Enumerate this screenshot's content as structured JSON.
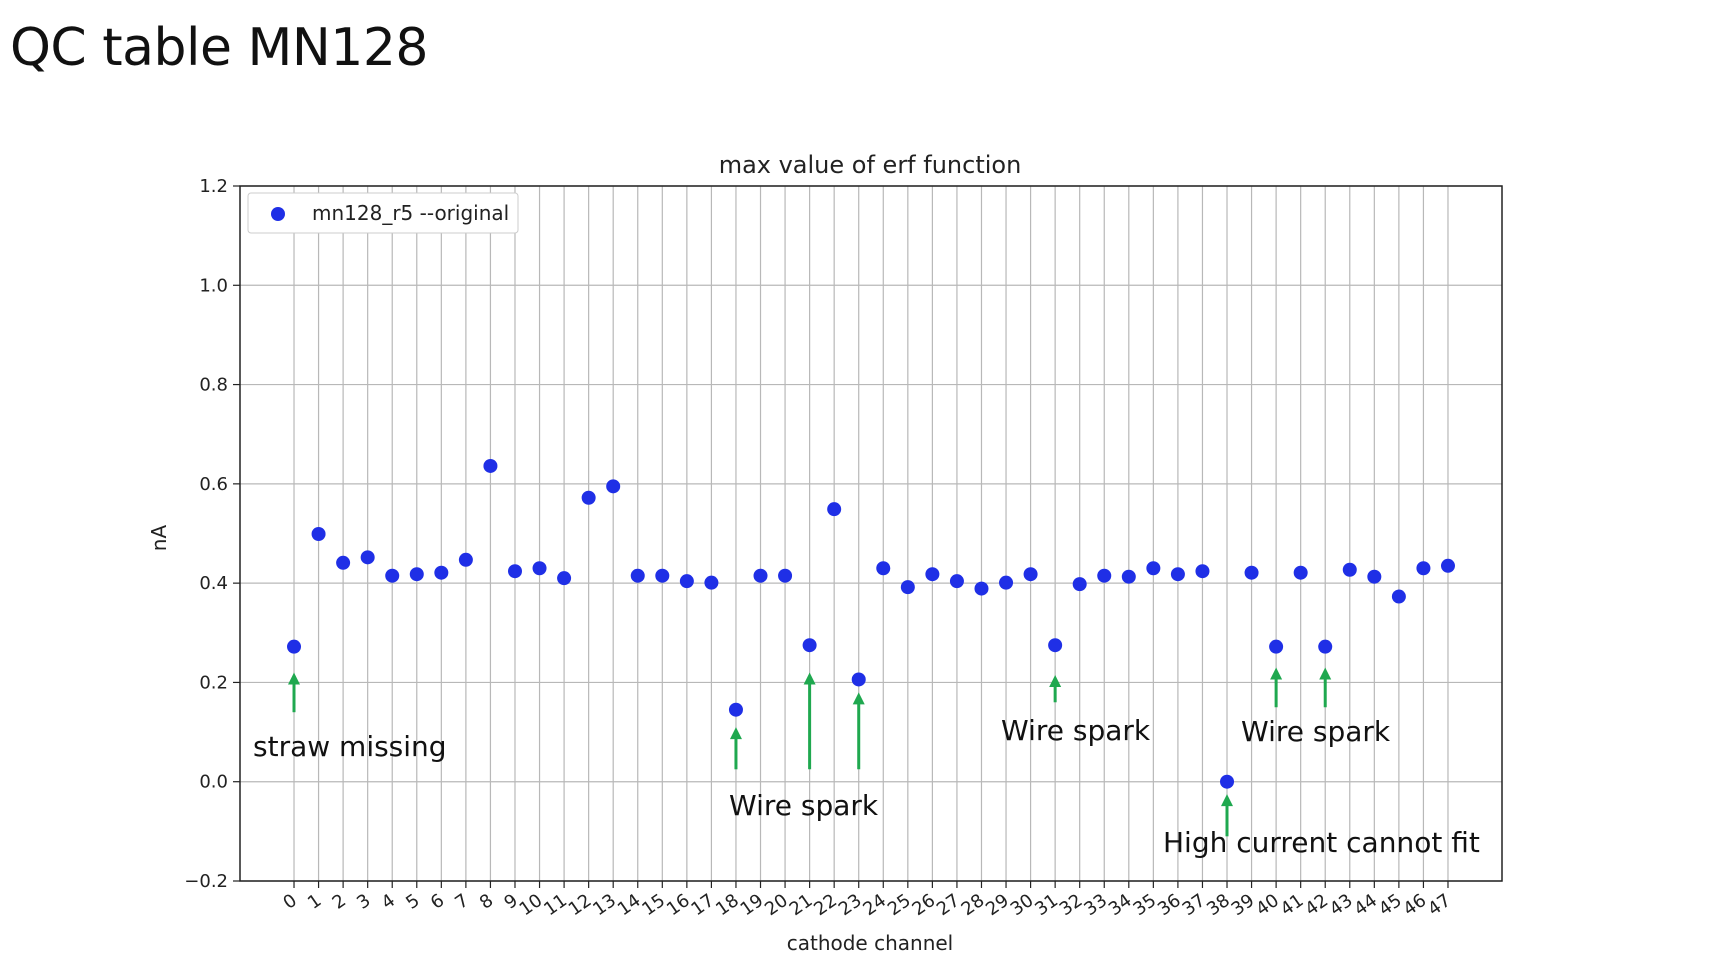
{
  "slide": {
    "title": "QC table MN128"
  },
  "chart_data": {
    "type": "scatter",
    "title": "max value of erf function",
    "xlabel": "cathode channel",
    "ylabel": "nA",
    "ylim": [
      -0.2,
      1.2
    ],
    "xlim": [
      -2.2,
      49.2
    ],
    "yticks": [
      -0.2,
      0.0,
      0.2,
      0.4,
      0.6,
      0.8,
      1.0,
      1.2
    ],
    "ytick_labels": [
      "−0.2",
      "0.0",
      "0.2",
      "0.4",
      "0.6",
      "0.8",
      "1.0",
      "1.2"
    ],
    "x": [
      0,
      1,
      2,
      3,
      4,
      5,
      6,
      7,
      8,
      9,
      10,
      11,
      12,
      13,
      14,
      15,
      16,
      17,
      18,
      19,
      20,
      21,
      22,
      23,
      24,
      25,
      26,
      27,
      28,
      29,
      30,
      31,
      32,
      33,
      34,
      35,
      36,
      37,
      38,
      39,
      40,
      41,
      42,
      43,
      44,
      45,
      46,
      47
    ],
    "xtick_labels": [
      "0",
      "1",
      "2",
      "3",
      "4",
      "5",
      "6",
      "7",
      "8",
      "9",
      "10",
      "11",
      "12",
      "13",
      "14",
      "15",
      "16",
      "17",
      "18",
      "19",
      "20",
      "21",
      "22",
      "23",
      "24",
      "25",
      "26",
      "27",
      "28",
      "29",
      "30",
      "31",
      "32",
      "33",
      "34",
      "35",
      "36",
      "37",
      "38",
      "39",
      "40",
      "41",
      "42",
      "43",
      "44",
      "45",
      "46",
      "47"
    ],
    "grid": true,
    "legend_position": "top-left",
    "series": [
      {
        "name": "mn128_r5 --original",
        "color": "#1f2fe6",
        "values": [
          0.272,
          0.499,
          0.441,
          0.452,
          0.415,
          0.418,
          0.421,
          0.447,
          0.636,
          0.424,
          0.43,
          0.41,
          0.572,
          0.595,
          0.415,
          0.415,
          0.404,
          0.401,
          0.145,
          0.415,
          0.415,
          0.275,
          0.549,
          0.206,
          0.43,
          0.392,
          0.418,
          0.404,
          0.389,
          0.401,
          0.418,
          0.275,
          0.398,
          0.415,
          0.413,
          0.43,
          0.418,
          0.424,
          0.0,
          0.421,
          0.272,
          0.421,
          0.272,
          0.427,
          0.413,
          0.373,
          0.43,
          0.435
        ]
      }
    ],
    "arrow_color": "#1fa84f",
    "annotations": [
      {
        "text": "straw missing",
        "channel": 0,
        "tip": 0.22,
        "base": 0.14
      },
      {
        "text": "Wire spark",
        "channel": 18,
        "tip": 0.11,
        "base": 0.025
      },
      {
        "text": "",
        "channel": 21,
        "tip": 0.22,
        "base": 0.025
      },
      {
        "text": "",
        "channel": 23,
        "tip": 0.18,
        "base": 0.025
      },
      {
        "text": "Wire spark",
        "channel": 31,
        "tip": 0.215,
        "base": 0.16
      },
      {
        "text": "High current cannot fit",
        "channel": 38,
        "tip": -0.025,
        "base": -0.11
      },
      {
        "text": "Wire spark",
        "channel": 40,
        "tip": 0.23,
        "base": 0.15
      },
      {
        "text": "",
        "channel": 42,
        "tip": 0.23,
        "base": 0.15
      }
    ]
  }
}
